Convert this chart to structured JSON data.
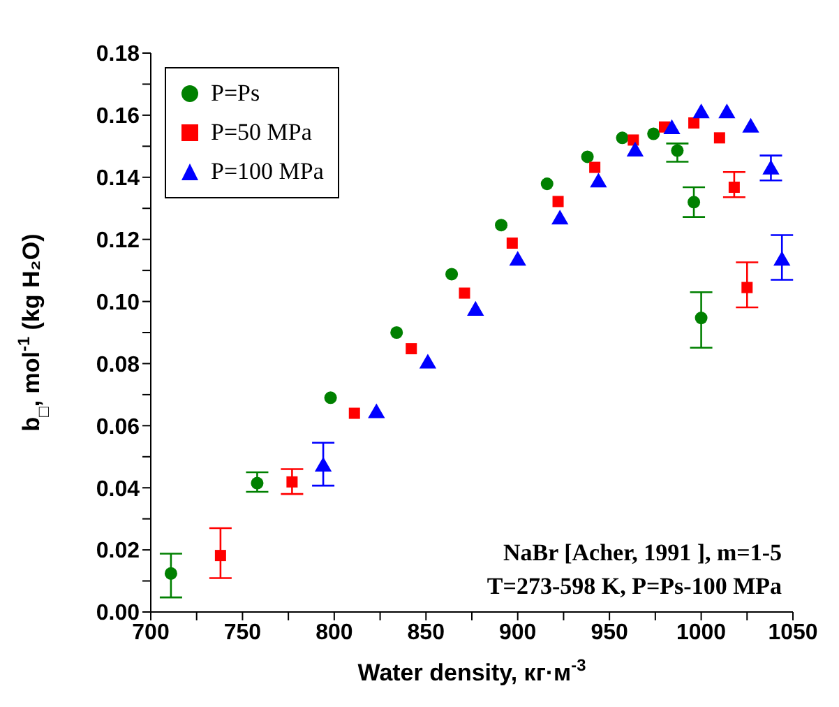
{
  "chart_data": {
    "type": "scatter",
    "xlabel": "Water density, кг·м$^{-3}$",
    "ylabel": "b$_{□}$, mol$^{-1}$ (kg H₂O)",
    "xlim": [
      700,
      1050
    ],
    "xticks": [
      700,
      {
        "value": 725,
        "label": null
      },
      750,
      {
        "value": 775,
        "label": null
      },
      800,
      {
        "value": 825,
        "label": null
      },
      850,
      {
        "value": 875,
        "label": null
      },
      900,
      {
        "value": 925,
        "label": null
      },
      950,
      {
        "value": 975,
        "label": null
      },
      1000,
      {
        "value": 1025,
        "label": null
      },
      1050
    ],
    "ylim": [
      0,
      0.18
    ],
    "yticks": [
      {
        "value": 0,
        "label": "0.00"
      },
      {
        "value": 0.01,
        "label": null
      },
      {
        "value": 0.02,
        "label": "0.02"
      },
      {
        "value": 0.03,
        "label": null
      },
      {
        "value": 0.04,
        "label": "0.04"
      },
      {
        "value": 0.05,
        "label": null
      },
      {
        "value": 0.06,
        "label": "0.06"
      },
      {
        "value": 0.07,
        "label": null
      },
      {
        "value": 0.08,
        "label": "0.08"
      },
      {
        "value": 0.09,
        "label": null
      },
      {
        "value": 0.1,
        "label": "0.10"
      },
      {
        "value": 0.11,
        "label": null
      },
      {
        "value": 0.12,
        "label": "0.12"
      },
      {
        "value": 0.13,
        "label": null
      },
      {
        "value": 0.14,
        "label": "0.14"
      },
      {
        "value": 0.15,
        "label": null
      },
      {
        "value": 0.16,
        "label": "0.16"
      },
      {
        "value": 0.17,
        "label": null
      },
      {
        "value": 0.18,
        "label": "0.18"
      }
    ],
    "grid": false,
    "legend": "top left",
    "series": [
      {
        "name": "P=Ps",
        "color": "#008000",
        "marker": "circle",
        "x": [
          711,
          758,
          798,
          834,
          864,
          891,
          916,
          938,
          957,
          974,
          987,
          996,
          1000
        ],
        "values": [
          0.0124,
          0.0415,
          0.069,
          0.09,
          0.1088,
          0.1246,
          0.1379,
          0.1466,
          0.1527,
          0.154,
          0.1486,
          0.132,
          0.0947
        ],
        "errors": [
          [
            0.0047,
            0.0188
          ],
          [
            0.0387,
            0.045
          ],
          null,
          null,
          null,
          null,
          null,
          null,
          null,
          null,
          [
            0.145,
            0.1509
          ],
          [
            0.1272,
            0.1368
          ],
          [
            0.0851,
            0.103
          ]
        ]
      },
      {
        "name": "P=50 MPa",
        "color": "#ff0000",
        "marker": "square",
        "x": [
          738,
          777,
          811,
          842,
          871,
          897,
          922,
          942,
          963,
          980,
          996,
          1010,
          1018,
          1025
        ],
        "values": [
          0.0182,
          0.0419,
          0.064,
          0.0848,
          0.1027,
          0.1188,
          0.1322,
          0.1432,
          0.152,
          0.1562,
          0.1575,
          0.1527,
          0.1368,
          0.1045
        ],
        "errors": [
          [
            0.0109,
            0.027
          ],
          [
            0.038,
            0.046
          ],
          null,
          null,
          null,
          null,
          null,
          null,
          null,
          null,
          null,
          null,
          [
            0.1336,
            0.1417
          ],
          [
            0.0981,
            0.1126
          ]
        ]
      },
      {
        "name": "P=100 MPa",
        "color": "#0000ff",
        "marker": "triangle",
        "x": [
          794,
          823,
          851,
          877,
          900,
          923,
          944,
          964,
          984,
          1000,
          1014,
          1027,
          1038,
          1044
        ],
        "values": [
          0.0468,
          0.064,
          0.08,
          0.097,
          0.1131,
          0.1264,
          0.1383,
          0.1483,
          0.1555,
          0.1606,
          0.1606,
          0.156,
          0.1425,
          0.1131
        ],
        "errors": [
          [
            0.0407,
            0.0545
          ],
          null,
          null,
          null,
          null,
          null,
          null,
          null,
          null,
          null,
          null,
          null,
          [
            0.139,
            0.147
          ],
          [
            0.107,
            0.1214
          ]
        ]
      }
    ],
    "annotations": [
      "NaBr [Acher, 1991 ], m=1-5",
      "T=273-598 K, P=Ps-100 MPa"
    ]
  }
}
